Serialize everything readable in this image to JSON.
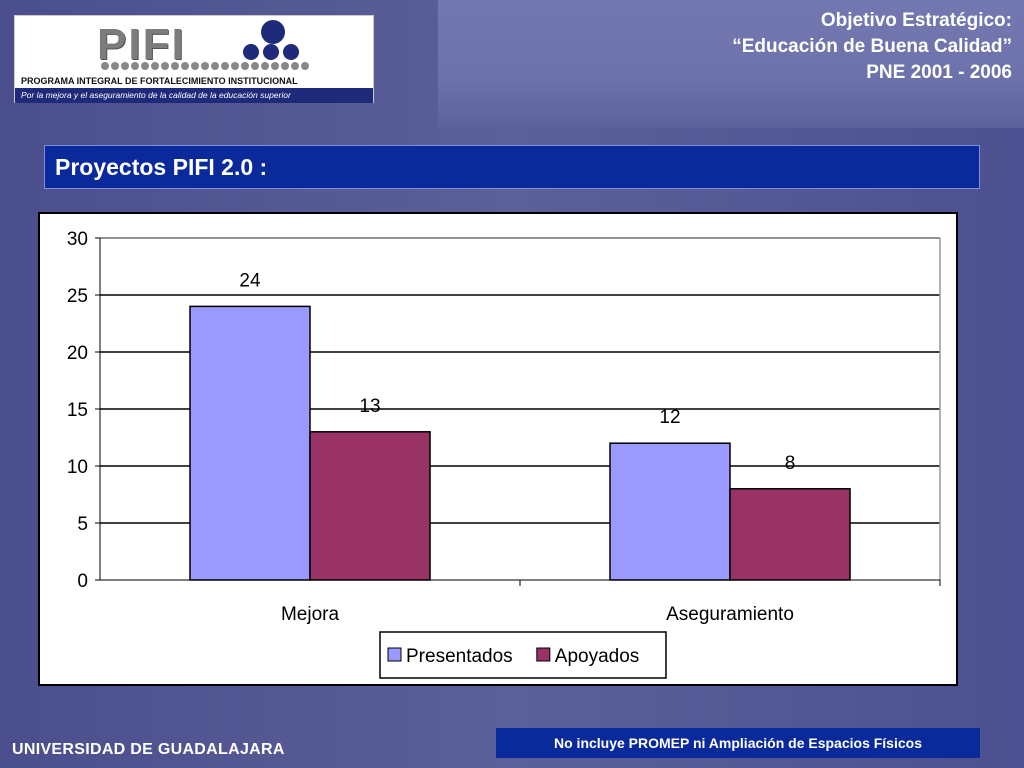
{
  "logo": {
    "word": "PIFI",
    "line1": "PROGRAMA INTEGRAL DE FORTALECIMIENTO INSTITUCIONAL",
    "line2": "Por la mejora y el aseguramiento de la calidad de la educación superior"
  },
  "header": {
    "line1": "Objetivo Estratégico:",
    "line2": "“Educación de Buena Calidad”",
    "line3": "PNE 2001 - 2006"
  },
  "slide_title": "Proyectos PIFI 2.0 :",
  "chart_data": {
    "type": "bar",
    "categories": [
      "Mejora",
      "Aseguramiento"
    ],
    "series": [
      {
        "name": "Presentados",
        "values": [
          24,
          12
        ],
        "color": "#9999ff"
      },
      {
        "name": "Apoyados",
        "values": [
          13,
          8
        ],
        "color": "#993366"
      }
    ],
    "ylim": [
      0,
      30
    ],
    "yticks": [
      0,
      5,
      10,
      15,
      20,
      25,
      30
    ],
    "grid": true,
    "legend": "bottom-center"
  },
  "footer": {
    "note": "No incluye PROMEP ni Ampliación de Espacios Físicos",
    "university": "UNIVERSIDAD DE GUADALAJARA"
  }
}
